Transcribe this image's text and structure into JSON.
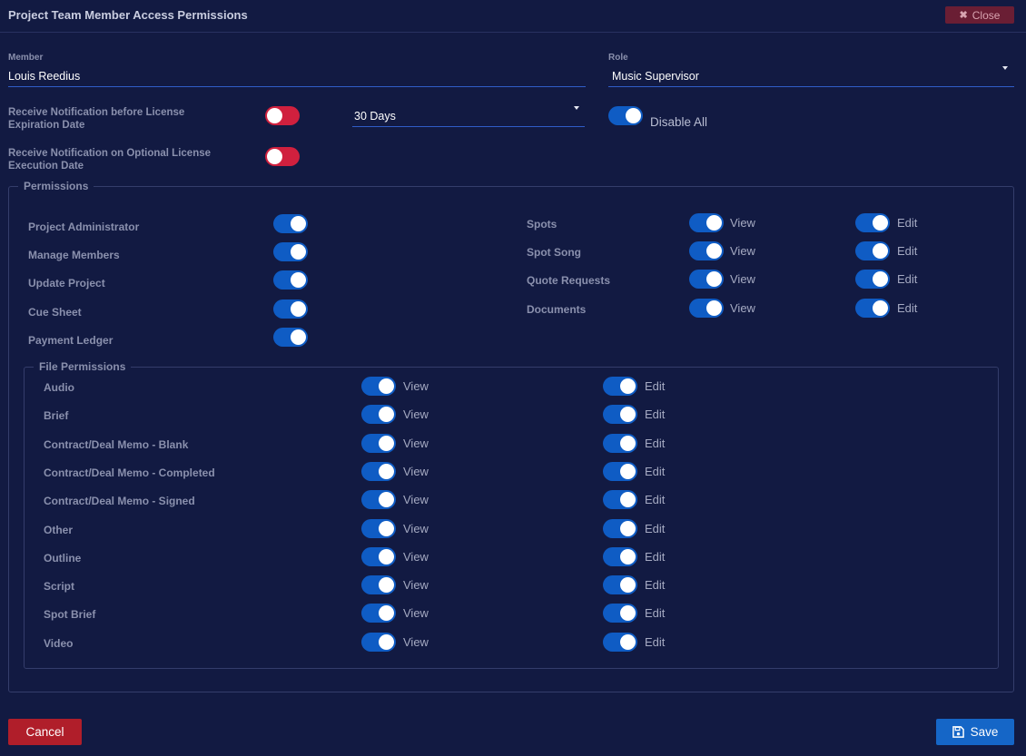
{
  "header": {
    "title": "Project Team Member Access Permissions",
    "close_label": "Close"
  },
  "form": {
    "member_label": "Member",
    "member_value": "Louis Reedius",
    "role_label": "Role",
    "role_value": "Music Supervisor",
    "notif_expiration_label": "Receive Notification before License Expiration Date",
    "notif_expiration_on": false,
    "days_value": "30 Days",
    "disable_all_label": "Disable All",
    "disable_all_on": true,
    "notif_execution_label": "Receive Notification on Optional License Execution Date",
    "notif_execution_on": false
  },
  "permissions": {
    "legend": "Permissions",
    "left": [
      {
        "label": "Project Administrator",
        "on": true
      },
      {
        "label": "Manage Members",
        "on": true
      },
      {
        "label": "Update Project",
        "on": true
      },
      {
        "label": "Cue Sheet",
        "on": true
      },
      {
        "label": "Payment Ledger",
        "on": true
      }
    ],
    "right": [
      {
        "label": "Spots",
        "view_label": "View",
        "edit_label": "Edit",
        "view_on": true,
        "edit_on": true
      },
      {
        "label": "Spot Song",
        "view_label": "View",
        "edit_label": "Edit",
        "view_on": true,
        "edit_on": true
      },
      {
        "label": "Quote Requests",
        "view_label": "View",
        "edit_label": "Edit",
        "view_on": true,
        "edit_on": true
      },
      {
        "label": "Documents",
        "view_label": "View",
        "edit_label": "Edit",
        "view_on": true,
        "edit_on": true
      }
    ]
  },
  "file_permissions": {
    "legend": "File Permissions",
    "items": [
      {
        "label": "Audio",
        "view_label": "View",
        "edit_label": "Edit",
        "view_on": true,
        "edit_on": true
      },
      {
        "label": "Brief",
        "view_label": "View",
        "edit_label": "Edit",
        "view_on": true,
        "edit_on": true
      },
      {
        "label": "Contract/Deal Memo - Blank",
        "view_label": "View",
        "edit_label": "Edit",
        "view_on": true,
        "edit_on": true
      },
      {
        "label": "Contract/Deal Memo - Completed",
        "view_label": "View",
        "edit_label": "Edit",
        "view_on": true,
        "edit_on": true
      },
      {
        "label": "Contract/Deal Memo - Signed",
        "view_label": "View",
        "edit_label": "Edit",
        "view_on": true,
        "edit_on": true
      },
      {
        "label": "Other",
        "view_label": "View",
        "edit_label": "Edit",
        "view_on": true,
        "edit_on": true
      },
      {
        "label": "Outline",
        "view_label": "View",
        "edit_label": "Edit",
        "view_on": true,
        "edit_on": true
      },
      {
        "label": "Script",
        "view_label": "View",
        "edit_label": "Edit",
        "view_on": true,
        "edit_on": true
      },
      {
        "label": "Spot Brief",
        "view_label": "View",
        "edit_label": "Edit",
        "view_on": true,
        "edit_on": true
      },
      {
        "label": "Video",
        "view_label": "View",
        "edit_label": "Edit",
        "view_on": true,
        "edit_on": true
      }
    ]
  },
  "footer": {
    "cancel_label": "Cancel",
    "save_label": "Save"
  },
  "colors": {
    "background": "#121a42",
    "toggle_on": "#0f5cc4",
    "toggle_off": "#d0203e",
    "cancel": "#b01e2a",
    "save": "#1566c7",
    "close": "#6a1e34"
  },
  "icons": {
    "close": "x-icon",
    "save": "floppy-disk-icon",
    "dropdown": "caret-down-icon"
  }
}
